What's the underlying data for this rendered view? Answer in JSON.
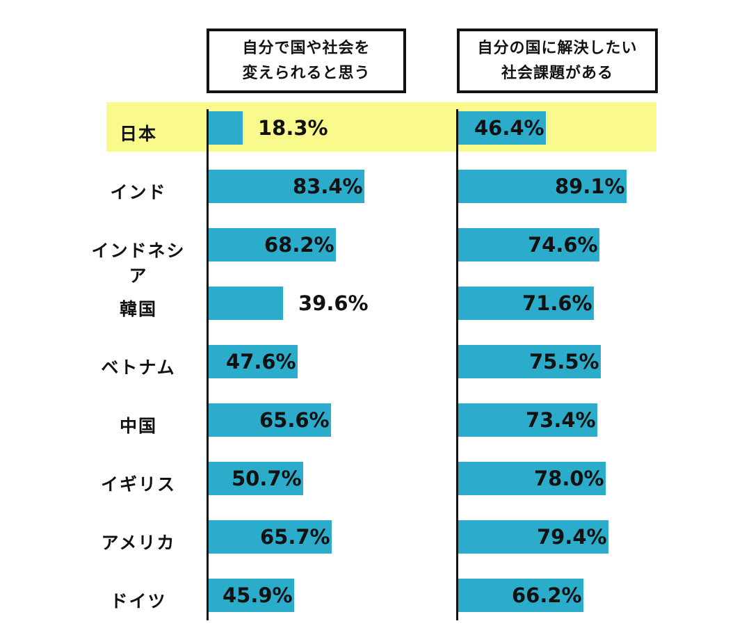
{
  "colors": {
    "bar": "#2aacca",
    "highlight": "#fafa8c",
    "axis": "#111111",
    "text": "#111111"
  },
  "chart_data": {
    "type": "bar",
    "orientation": "horizontal",
    "highlight_category": "日本",
    "categories": [
      "日本",
      "インド",
      "インドネシア",
      "韓国",
      "ベトナム",
      "中国",
      "イギリス",
      "アメリカ",
      "ドイツ"
    ],
    "series": [
      {
        "name_lines": [
          "自分で国や社会を",
          "変えられると思う"
        ],
        "values": [
          18.3,
          83.4,
          68.2,
          39.6,
          47.6,
          65.6,
          50.7,
          65.7,
          45.9
        ],
        "labels": [
          "18.3%",
          "83.4%",
          "68.2%",
          "39.6%",
          "47.6%",
          "65.6%",
          "50.7%",
          "65.7%",
          "45.9%"
        ]
      },
      {
        "name_lines": [
          "自分の国に解決したい",
          "社会課題がある"
        ],
        "values": [
          46.4,
          89.1,
          74.6,
          71.6,
          75.5,
          73.4,
          78.0,
          79.4,
          66.2
        ],
        "labels": [
          "46.4%",
          "89.1%",
          "74.6%",
          "71.6%",
          "75.5%",
          "73.4%",
          "78.0%",
          "79.4%",
          "66.2%"
        ]
      }
    ],
    "xlim": [
      0,
      100
    ]
  }
}
